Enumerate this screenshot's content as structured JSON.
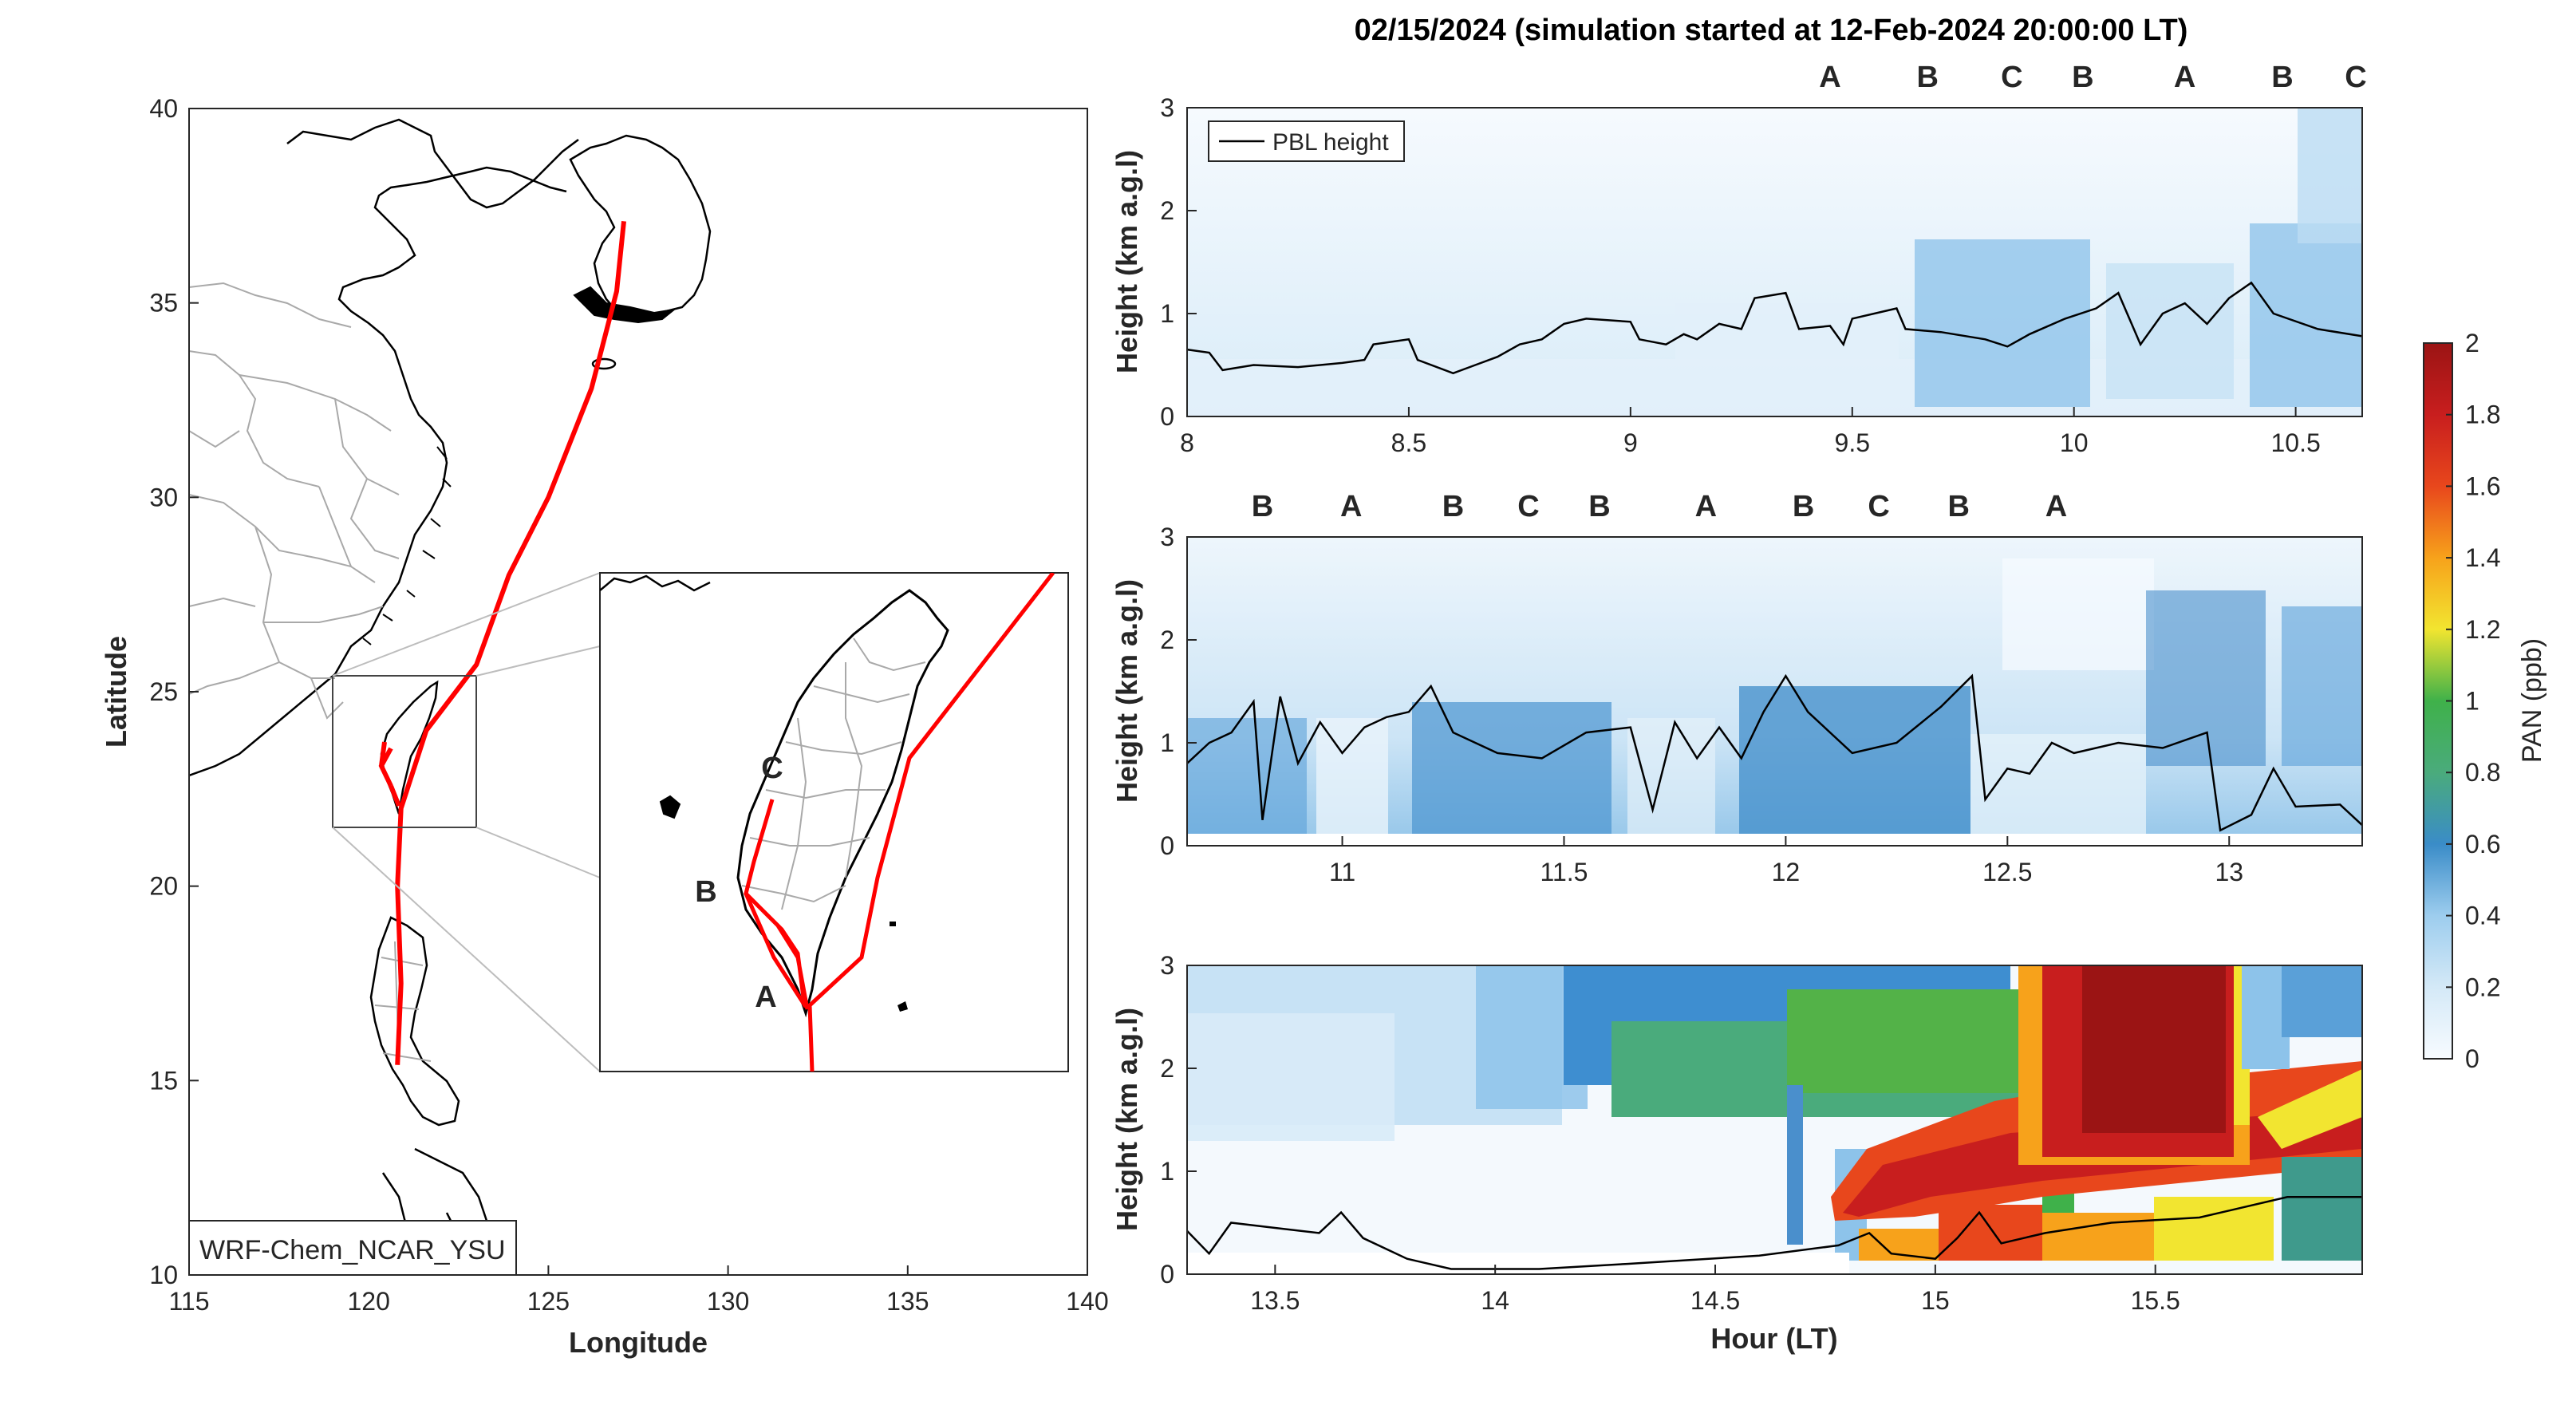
{
  "title": "02/15/2024 (simulation started at 12-Feb-2024 20:00:00 LT)",
  "colors": {
    "track": "#ff0000",
    "marker_A": "#111111",
    "marker_B": "#a0182c",
    "marker_C": "#e8a21a",
    "pbl_line": "#000000",
    "coast": "#000000",
    "border": "#a9a9a9"
  },
  "map": {
    "xlabel": "Longitude",
    "ylabel": "Latitude",
    "xlim": [
      115,
      140
    ],
    "ylim": [
      10,
      40
    ],
    "xticks": [
      "115",
      "120",
      "125",
      "130",
      "135",
      "140"
    ],
    "yticks": [
      "10",
      "15",
      "20",
      "25",
      "30",
      "35",
      "40"
    ],
    "model_label": "WRF-Chem_NCAR_YSU",
    "flight_track": [
      [
        127.1,
        37.1
      ],
      [
        126.9,
        35.3
      ],
      [
        126.2,
        32.8
      ],
      [
        125.0,
        30.0
      ],
      [
        123.9,
        28.0
      ],
      [
        123.0,
        25.7
      ],
      [
        121.6,
        24.0
      ],
      [
        120.9,
        22.0
      ],
      [
        120.8,
        20.0
      ],
      [
        120.9,
        17.5
      ],
      [
        120.8,
        15.4
      ]
    ],
    "inset_markers": [
      {
        "label": "A",
        "color": "marker_A"
      },
      {
        "label": "B",
        "color": "marker_B"
      },
      {
        "label": "C",
        "color": "marker_C"
      }
    ]
  },
  "colorbar": {
    "label": "PAN (ppb)",
    "ticks": [
      "0",
      "0.2",
      "0.4",
      "0.6",
      "0.8",
      "1",
      "1.2",
      "1.4",
      "1.6",
      "1.8",
      "2"
    ],
    "range": [
      0,
      2
    ],
    "colormap": [
      "#f7fbff",
      "#d4e9f7",
      "#9dcdee",
      "#5aa5dc",
      "#3a8cc8",
      "#4aab7c",
      "#3fb14a",
      "#8cc63f",
      "#f2e530",
      "#f7a21b",
      "#e8471c",
      "#c81e1e",
      "#9b1414"
    ]
  },
  "panels": [
    {
      "ylabel": "Height (km a.g.l)",
      "xlim": [
        8.0,
        10.65
      ],
      "ylim": [
        0,
        3
      ],
      "xticks": [
        "8",
        "8.5",
        "9",
        "9.5",
        "10",
        "10.5"
      ],
      "yticks": [
        "0",
        "1",
        "2",
        "3"
      ],
      "legend": "PBL height",
      "markers": [
        {
          "label": "A",
          "color": "marker_A"
        },
        {
          "label": "B",
          "color": "marker_B"
        },
        {
          "label": "C",
          "color": "marker_C"
        },
        {
          "label": "B",
          "color": "marker_B"
        },
        {
          "label": "A",
          "color": "marker_A"
        },
        {
          "label": "B",
          "color": "marker_B"
        },
        {
          "label": "C",
          "color": "marker_C"
        }
      ],
      "marker_times": [
        9.45,
        9.67,
        9.86,
        10.02,
        10.25,
        10.47,
        10.65
      ],
      "pbl_height": [
        [
          8.0,
          0.65
        ],
        [
          8.05,
          0.62
        ],
        [
          8.08,
          0.45
        ],
        [
          8.15,
          0.5
        ],
        [
          8.25,
          0.48
        ],
        [
          8.35,
          0.52
        ],
        [
          8.4,
          0.55
        ],
        [
          8.42,
          0.7
        ],
        [
          8.5,
          0.75
        ],
        [
          8.52,
          0.55
        ],
        [
          8.6,
          0.42
        ],
        [
          8.65,
          0.5
        ],
        [
          8.7,
          0.58
        ],
        [
          8.75,
          0.7
        ],
        [
          8.8,
          0.75
        ],
        [
          8.85,
          0.9
        ],
        [
          8.9,
          0.95
        ],
        [
          9.0,
          0.92
        ],
        [
          9.02,
          0.75
        ],
        [
          9.08,
          0.7
        ],
        [
          9.12,
          0.8
        ],
        [
          9.15,
          0.75
        ],
        [
          9.2,
          0.9
        ],
        [
          9.25,
          0.85
        ],
        [
          9.28,
          1.15
        ],
        [
          9.35,
          1.2
        ],
        [
          9.38,
          0.85
        ],
        [
          9.45,
          0.88
        ],
        [
          9.48,
          0.7
        ],
        [
          9.5,
          0.95
        ],
        [
          9.6,
          1.05
        ],
        [
          9.62,
          0.85
        ],
        [
          9.7,
          0.82
        ],
        [
          9.8,
          0.75
        ],
        [
          9.85,
          0.68
        ],
        [
          9.9,
          0.8
        ],
        [
          9.98,
          0.95
        ],
        [
          10.05,
          1.05
        ],
        [
          10.1,
          1.2
        ],
        [
          10.15,
          0.7
        ],
        [
          10.2,
          1.0
        ],
        [
          10.25,
          1.1
        ],
        [
          10.3,
          0.9
        ],
        [
          10.35,
          1.15
        ],
        [
          10.4,
          1.3
        ],
        [
          10.45,
          1.0
        ],
        [
          10.55,
          0.85
        ],
        [
          10.65,
          0.78
        ]
      ]
    },
    {
      "ylabel": "Height (km a.g.l)",
      "xlim": [
        10.65,
        13.3
      ],
      "ylim": [
        0,
        3
      ],
      "xticks": [
        "11",
        "11.5",
        "12",
        "12.5",
        "13"
      ],
      "yticks": [
        "0",
        "1",
        "2",
        "3"
      ],
      "markers": [
        {
          "label": "B",
          "color": "marker_B"
        },
        {
          "label": "A",
          "color": "marker_A"
        },
        {
          "label": "B",
          "color": "marker_B"
        },
        {
          "label": "C",
          "color": "marker_C"
        },
        {
          "label": "B",
          "color": "marker_B"
        },
        {
          "label": "A",
          "color": "marker_A"
        },
        {
          "label": "B",
          "color": "marker_B"
        },
        {
          "label": "C",
          "color": "marker_C"
        },
        {
          "label": "B",
          "color": "marker_B"
        },
        {
          "label": "A",
          "color": "marker_A"
        }
      ],
      "marker_times": [
        10.82,
        11.02,
        11.25,
        11.42,
        11.58,
        11.82,
        12.04,
        12.21,
        12.39,
        12.61
      ],
      "pbl_height": [
        [
          10.65,
          0.8
        ],
        [
          10.7,
          1.0
        ],
        [
          10.75,
          1.1
        ],
        [
          10.8,
          1.4
        ],
        [
          10.82,
          0.25
        ],
        [
          10.86,
          1.45
        ],
        [
          10.9,
          0.8
        ],
        [
          10.95,
          1.2
        ],
        [
          11.0,
          0.9
        ],
        [
          11.05,
          1.15
        ],
        [
          11.1,
          1.25
        ],
        [
          11.15,
          1.3
        ],
        [
          11.2,
          1.55
        ],
        [
          11.25,
          1.1
        ],
        [
          11.35,
          0.9
        ],
        [
          11.45,
          0.85
        ],
        [
          11.55,
          1.1
        ],
        [
          11.65,
          1.15
        ],
        [
          11.7,
          0.35
        ],
        [
          11.75,
          1.2
        ],
        [
          11.8,
          0.85
        ],
        [
          11.85,
          1.15
        ],
        [
          11.9,
          0.85
        ],
        [
          11.95,
          1.3
        ],
        [
          12.0,
          1.65
        ],
        [
          12.05,
          1.3
        ],
        [
          12.15,
          0.9
        ],
        [
          12.25,
          1.0
        ],
        [
          12.35,
          1.35
        ],
        [
          12.42,
          1.65
        ],
        [
          12.45,
          0.45
        ],
        [
          12.5,
          0.75
        ],
        [
          12.55,
          0.7
        ],
        [
          12.6,
          1.0
        ],
        [
          12.65,
          0.9
        ],
        [
          12.75,
          1.0
        ],
        [
          12.85,
          0.95
        ],
        [
          12.95,
          1.1
        ],
        [
          12.98,
          0.15
        ],
        [
          13.05,
          0.3
        ],
        [
          13.1,
          0.75
        ],
        [
          13.15,
          0.38
        ],
        [
          13.25,
          0.4
        ],
        [
          13.3,
          0.2
        ]
      ]
    },
    {
      "ylabel": "Height (km a.g.l)",
      "xlabel": "Hour (LT)",
      "xlim": [
        13.3,
        15.97
      ],
      "ylim": [
        0,
        3
      ],
      "xticks": [
        "13.5",
        "14",
        "14.5",
        "15",
        "15.5"
      ],
      "yticks": [
        "0",
        "1",
        "2",
        "3"
      ],
      "pbl_height": [
        [
          13.3,
          0.42
        ],
        [
          13.35,
          0.2
        ],
        [
          13.4,
          0.5
        ],
        [
          13.5,
          0.45
        ],
        [
          13.6,
          0.4
        ],
        [
          13.65,
          0.6
        ],
        [
          13.7,
          0.35
        ],
        [
          13.8,
          0.15
        ],
        [
          13.9,
          0.05
        ],
        [
          14.1,
          0.05
        ],
        [
          14.3,
          0.1
        ],
        [
          14.6,
          0.18
        ],
        [
          14.78,
          0.28
        ],
        [
          14.85,
          0.4
        ],
        [
          14.9,
          0.2
        ],
        [
          15.0,
          0.15
        ],
        [
          15.05,
          0.35
        ],
        [
          15.1,
          0.6
        ],
        [
          15.15,
          0.3
        ],
        [
          15.25,
          0.4
        ],
        [
          15.4,
          0.5
        ],
        [
          15.6,
          0.55
        ],
        [
          15.8,
          0.75
        ],
        [
          15.97,
          0.75
        ]
      ]
    }
  ]
}
